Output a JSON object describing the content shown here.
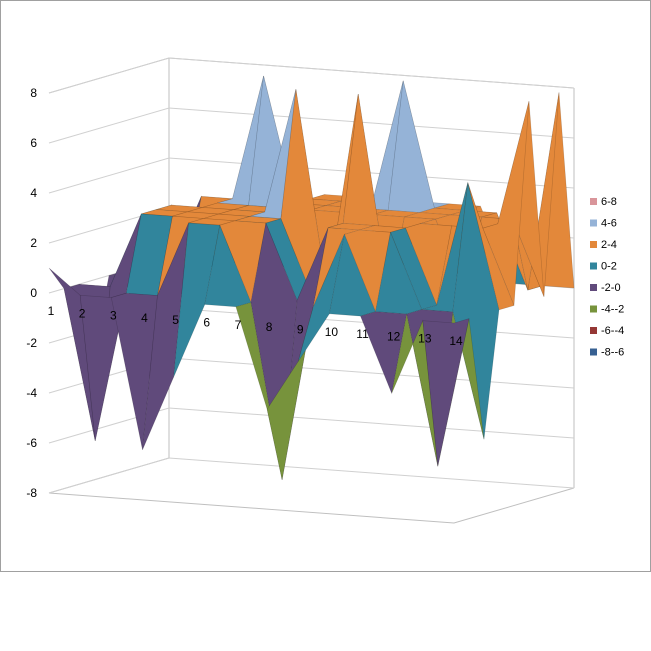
{
  "chart_data": {
    "type": "surface",
    "title": "",
    "xlabel": "",
    "ylabel": "",
    "zlim": [
      -8,
      8
    ],
    "z_ticks": [
      "8",
      "6",
      "4",
      "2",
      "0",
      "-2",
      "-4",
      "-6",
      "-8"
    ],
    "x_ticks": [
      "1",
      "2",
      "3",
      "4",
      "5",
      "6",
      "7",
      "8",
      "9",
      "10",
      "11",
      "12",
      "13",
      "14"
    ],
    "grid": true,
    "legend_position": "right",
    "legend": [
      {
        "label": "6-8",
        "color": "#d9959a"
      },
      {
        "label": "4-6",
        "color": "#95b3d7"
      },
      {
        "label": "2-4",
        "color": "#e3883a"
      },
      {
        "label": "0-2",
        "color": "#31859c"
      },
      {
        "label": "-2-0",
        "color": "#604a7b"
      },
      {
        "label": "-4--2",
        "color": "#77933c"
      },
      {
        "label": "-6--4",
        "color": "#953735"
      },
      {
        "label": "-8--6",
        "color": "#376092"
      }
    ],
    "rows": [
      [
        1,
        0,
        0,
        -6,
        -3,
        0,
        0,
        -4,
        -2,
        0,
        0,
        -3,
        0,
        0
      ],
      [
        0,
        -6,
        0,
        0,
        3,
        3,
        0,
        -7,
        0,
        3,
        0,
        0,
        -6,
        0
      ],
      [
        0,
        0,
        3,
        3,
        3,
        3,
        3,
        0,
        3,
        3,
        3,
        0,
        0,
        -5
      ],
      [
        -3,
        0,
        3,
        3,
        3,
        3,
        3,
        0,
        3,
        3,
        3,
        0,
        5,
        0
      ],
      [
        0,
        0,
        3,
        3,
        3,
        3,
        8,
        0,
        8,
        0,
        3,
        3,
        3,
        0
      ],
      [
        0,
        -5,
        0,
        3,
        3,
        3,
        3,
        3,
        3,
        3,
        3,
        0,
        3,
        8
      ],
      [
        0,
        0,
        3,
        3,
        8,
        3,
        3,
        3,
        3,
        3,
        3,
        3,
        3,
        0
      ],
      [
        -2,
        0,
        0,
        3,
        3,
        3,
        3,
        3,
        8,
        3,
        3,
        3,
        0,
        8
      ],
      [
        0,
        0,
        0,
        0,
        0,
        3,
        3,
        3,
        3,
        3,
        3,
        0,
        0,
        0
      ]
    ]
  }
}
